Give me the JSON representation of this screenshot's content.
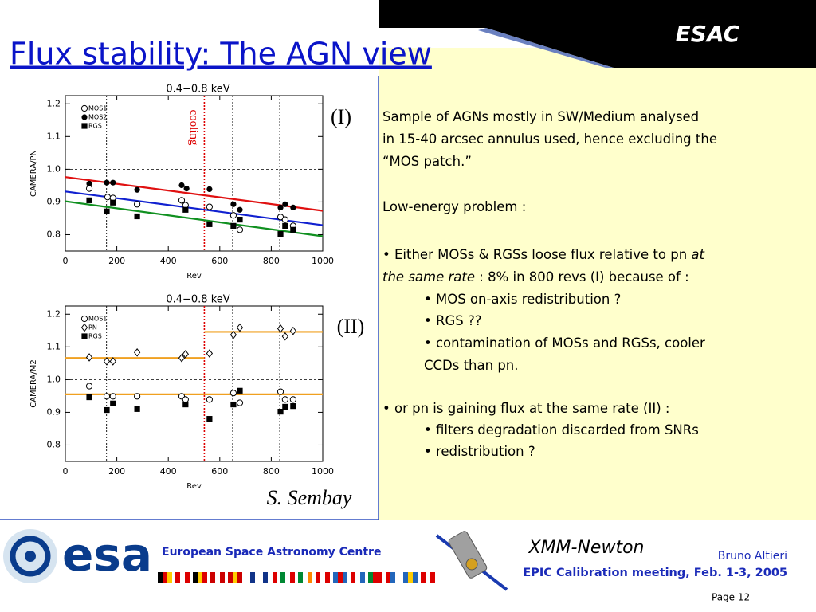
{
  "header": {
    "title": "Flux stability: The AGN view",
    "org": "ESAC"
  },
  "plots": [
    {
      "type": "scatter",
      "title": "0.4−0.8 keV",
      "xlabel": "Rev",
      "ylabel": "CAMERA/PN",
      "panel_label": "(I)",
      "annotation": "cooling",
      "xlim": [
        0,
        1000
      ],
      "ylim": [
        0.75,
        1.225
      ],
      "xticks": [
        0,
        200,
        400,
        600,
        800,
        1000
      ],
      "yticks": [
        0.8,
        0.9,
        {
          "value": 1,
          "label": "1.0"
        },
        1.1,
        1.2
      ],
      "reference_line": 1,
      "vlines": [
        {
          "x": 160,
          "color": "#000000"
        },
        {
          "x": 540,
          "color": "#dd0000"
        },
        {
          "x": 650,
          "color": "#000000"
        },
        {
          "x": 833,
          "color": "#000000"
        }
      ],
      "series": [
        {
          "name": "MOS1",
          "marker": "open-circle",
          "color": "#000000",
          "x": [
            93,
            164,
            185,
            279,
            452,
            467,
            560,
            653,
            678,
            836,
            854,
            885
          ],
          "values": [
            0.941,
            0.915,
            0.912,
            0.893,
            0.905,
            0.89,
            0.885,
            0.859,
            0.815,
            0.854,
            0.846,
            0.827
          ]
        },
        {
          "name": "MOS2",
          "marker": "filled-circle",
          "color": "#000000",
          "x": [
            93,
            161,
            185,
            279,
            452,
            471,
            560,
            653,
            678,
            836,
            854,
            885
          ],
          "values": [
            0.956,
            0.959,
            0.959,
            0.937,
            0.951,
            0.941,
            0.939,
            0.893,
            0.876,
            0.883,
            0.893,
            0.883
          ]
        },
        {
          "name": "RGS",
          "marker": "filled-square",
          "color": "#000000",
          "x": [
            93,
            161,
            185,
            279,
            467,
            560,
            653,
            678,
            836,
            854,
            885
          ],
          "values": [
            0.905,
            0.871,
            0.898,
            0.856,
            0.876,
            0.832,
            0.827,
            0.846,
            0.802,
            0.827,
            0.815
          ]
        }
      ],
      "fits": [
        {
          "color": "#e01010",
          "x": [
            0,
            1000
          ],
          "values": [
            0.976,
            0.873
          ]
        },
        {
          "color": "#1020d0",
          "x": [
            0,
            1000
          ],
          "values": [
            0.932,
            0.829
          ]
        },
        {
          "color": "#109020",
          "x": [
            0,
            1000
          ],
          "values": [
            0.902,
            0.795
          ]
        }
      ]
    },
    {
      "type": "scatter",
      "title": "0.4−0.8 keV",
      "xlabel": "Rev",
      "ylabel": "CAMERA/M2",
      "panel_label": "(II)",
      "xlim": [
        0,
        1000
      ],
      "ylim": [
        0.75,
        1.225
      ],
      "xticks": [
        0,
        200,
        400,
        600,
        800,
        1000
      ],
      "yticks": [
        0.8,
        0.9,
        {
          "value": 1,
          "label": "1.0"
        },
        1.1,
        1.2
      ],
      "reference_line": 1,
      "vlines": [
        {
          "x": 160,
          "color": "#000000"
        },
        {
          "x": 540,
          "color": "#dd0000"
        },
        {
          "x": 650,
          "color": "#000000"
        },
        {
          "x": 833,
          "color": "#000000"
        }
      ],
      "series": [
        {
          "name": "MOS1",
          "marker": "open-circle",
          "color": "#000000",
          "x": [
            93,
            161,
            185,
            279,
            452,
            467,
            560,
            653,
            678,
            836,
            854,
            885
          ],
          "values": [
            0.98,
            0.949,
            0.949,
            0.949,
            0.949,
            0.939,
            0.939,
            0.959,
            0.929,
            0.963,
            0.939,
            0.939
          ]
        },
        {
          "name": "PN",
          "marker": "open-diamond",
          "color": "#000000",
          "x": [
            93,
            161,
            185,
            279,
            452,
            467,
            560,
            653,
            678,
            836,
            854,
            885
          ],
          "values": [
            1.068,
            1.056,
            1.056,
            1.083,
            1.066,
            1.078,
            1.08,
            1.137,
            1.159,
            1.156,
            1.132,
            1.149
          ]
        },
        {
          "name": "RGS",
          "marker": "filled-square",
          "color": "#000000",
          "x": [
            93,
            161,
            185,
            279,
            467,
            560,
            653,
            678,
            836,
            854,
            885
          ],
          "values": [
            0.946,
            0.907,
            0.927,
            0.91,
            0.924,
            0.88,
            0.924,
            0.966,
            0.902,
            0.917,
            0.919
          ]
        }
      ],
      "fits": [
        {
          "color": "#f0a020",
          "x": [
            0,
            540
          ],
          "values": [
            1.066,
            1.066
          ]
        },
        {
          "color": "#f0a020",
          "x": [
            540,
            1000
          ],
          "values": [
            1.146,
            1.146
          ]
        },
        {
          "color": "#f0a020",
          "x": [
            0,
            1000
          ],
          "values": [
            0.955,
            0.955
          ]
        }
      ]
    }
  ],
  "credit": "S. Sembay",
  "body": [
    {
      "level": 1,
      "parts": [
        {
          "text": "Sample of AGNs mostly in SW/Medium analysed"
        }
      ]
    },
    {
      "level": 1,
      "parts": [
        {
          "text": "in 15-40 arcsec annulus used, hence excluding the"
        }
      ]
    },
    {
      "level": 1,
      "parts": [
        {
          "text": "“MOS patch.”"
        }
      ]
    },
    {
      "level": 1,
      "parts": [
        {
          "text": "Low-energy problem :"
        }
      ]
    },
    {
      "level": 1,
      "parts": [
        {
          "text": "• Either MOSs & RGSs loose flux relative to pn "
        },
        {
          "text": "at",
          "italic": true
        }
      ]
    },
    {
      "level": 1,
      "parts": [
        {
          "text": "the same rate",
          "italic": true
        },
        {
          "text": " : 8% in 800 revs (I) because of :"
        }
      ]
    },
    {
      "level": 2,
      "parts": [
        {
          "text": "• MOS on-axis redistribution ?"
        }
      ]
    },
    {
      "level": 2,
      "parts": [
        {
          "text": "• RGS ??"
        }
      ]
    },
    {
      "level": 2,
      "parts": [
        {
          "text": "• contamination of MOSs and RGSs, cooler"
        }
      ]
    },
    {
      "level": 2,
      "parts": [
        {
          "text": "CCDs than pn."
        }
      ]
    },
    {
      "level": 1,
      "parts": [
        {
          "text": "• or pn is gaining flux at the same rate (II) :"
        }
      ]
    },
    {
      "level": 2,
      "parts": [
        {
          "text": "• filters degradation discarded from SNRs"
        }
      ]
    },
    {
      "level": 2,
      "parts": [
        {
          "text": "• redistribution ?"
        }
      ]
    }
  ],
  "footer": {
    "logo_text": "esa",
    "centre": "European Space Astronomy Centre",
    "mission": "XMM-Newton",
    "author": "Bruno Altieri",
    "meeting": "EPIC Calibration meeting, Feb. 1-3, 2005",
    "page": "Page 12"
  }
}
